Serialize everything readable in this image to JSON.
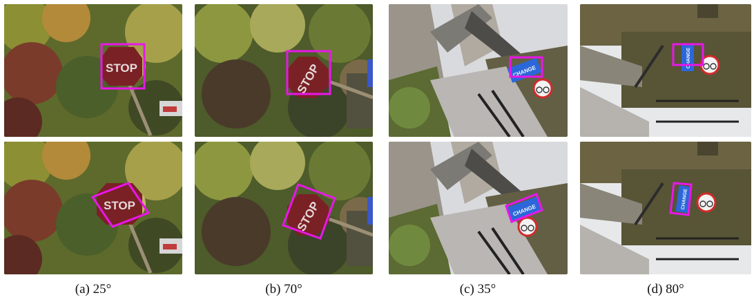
{
  "figure": {
    "panels": [
      {
        "id": "a",
        "caption_label": "(a)",
        "caption_angle": "25°",
        "scene": "autumn-tree-stop-sign",
        "sign_text": "STOP"
      },
      {
        "id": "b",
        "caption_label": "(b)",
        "caption_angle": "70°",
        "scene": "autumn-tree-stop-sign",
        "sign_text": "STOP"
      },
      {
        "id": "c",
        "caption_label": "(c)",
        "caption_angle": "35°",
        "scene": "stone-bridge-change-sign",
        "sign_text": "CHANGE"
      },
      {
        "id": "d",
        "caption_label": "(d)",
        "caption_angle": "80°",
        "scene": "stone-bridge-change-sign",
        "sign_text": "CHANGE"
      }
    ],
    "box_color": "#e817e8"
  }
}
